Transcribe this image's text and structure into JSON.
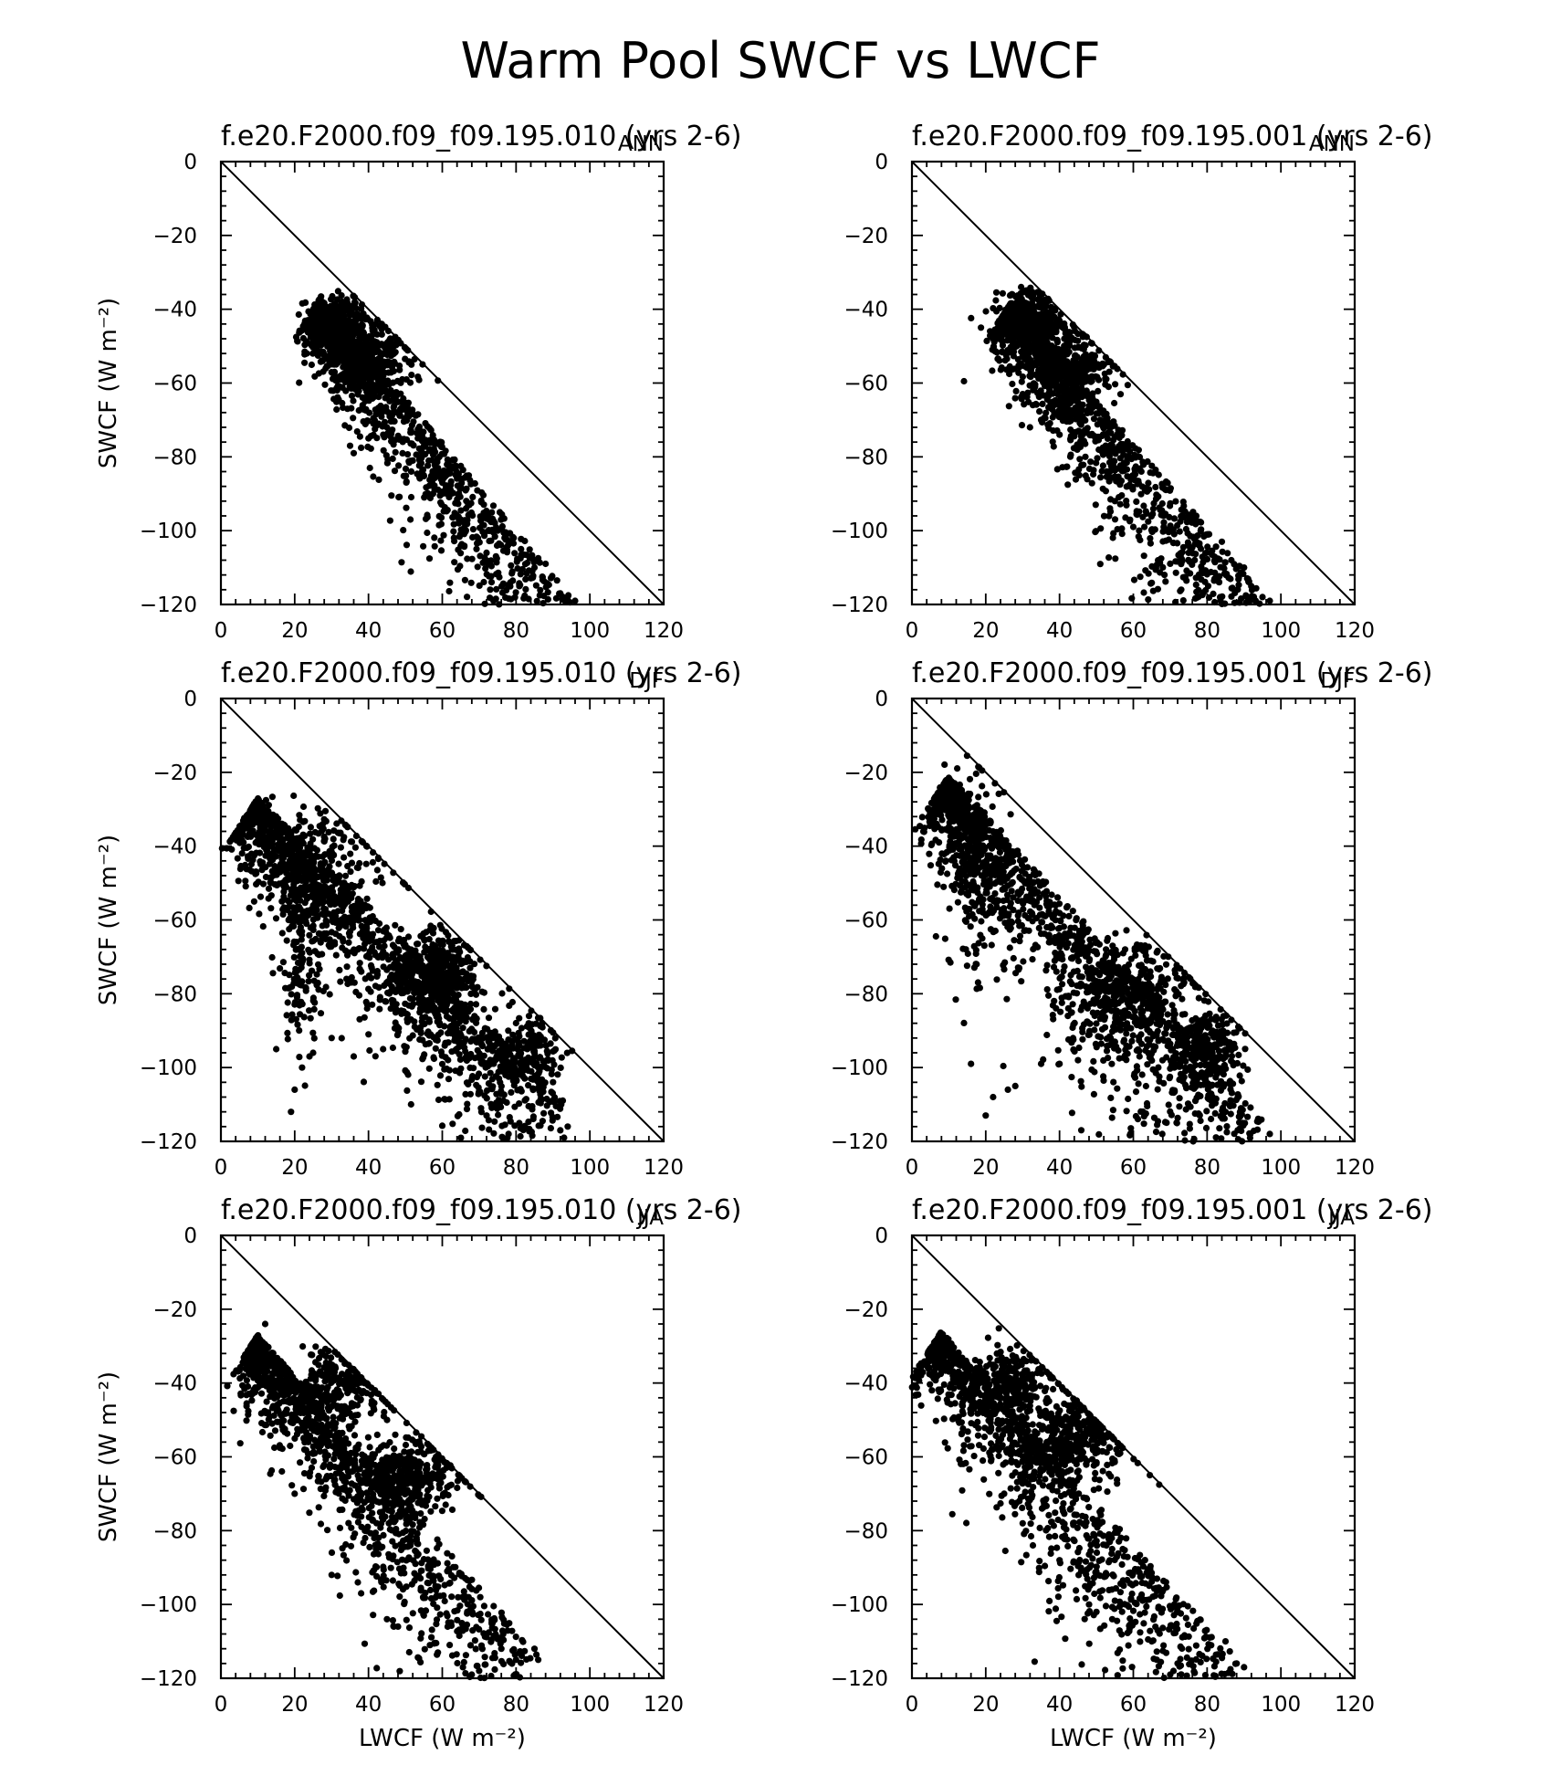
{
  "figure_title": "Warm Pool SWCF vs LWCF",
  "chart_data": [
    {
      "type": "scatter",
      "title": "f.e20.F2000.f09_f09.195.010 (yrs 2-6)",
      "season": "ANN",
      "xlabel": "",
      "ylabel": "SWCF (W m⁻²)",
      "xlim": [
        0,
        120
      ],
      "ylim": [
        -120,
        0
      ],
      "xticks": [
        "0",
        "20",
        "40",
        "60",
        "80",
        "100",
        "120"
      ],
      "yticks": [
        "0",
        "−20",
        "−40",
        "−60",
        "−80",
        "−100",
        "−120"
      ],
      "reference_line": "y = -x",
      "shape": {
        "mode": "band",
        "x_start": 27,
        "x_end": 96,
        "y_start": -37,
        "y_end": -119,
        "spread": 11,
        "n": 1100,
        "clusters": [
          {
            "x": 32,
            "y": -45,
            "sx": 4,
            "sy": 4,
            "n": 400
          },
          {
            "x": 40,
            "y": -54,
            "sx": 6,
            "sy": 5,
            "n": 350
          }
        ],
        "outliers": [
          [
            35,
            -77
          ],
          [
            36,
            -79
          ],
          [
            40,
            -75
          ],
          [
            44,
            -74
          ],
          [
            52,
            -81
          ],
          [
            55,
            -85
          ],
          [
            60,
            -90
          ],
          [
            65,
            -97
          ],
          [
            72,
            -106
          ],
          [
            73,
            -116
          ],
          [
            85,
            -110
          ],
          [
            88,
            -109
          ],
          [
            92,
            -117
          ],
          [
            94,
            -118
          ],
          [
            96,
            -119
          ],
          [
            59,
            -85
          ],
          [
            61,
            -88
          ],
          [
            45,
            -72
          ],
          [
            75,
            -100
          ],
          [
            78,
            -103
          ]
        ]
      }
    },
    {
      "type": "scatter",
      "title": "f.e20.F2000.f09_f09.195.001 (yrs 2-6)",
      "season": "ANN",
      "xlabel": "",
      "ylabel": "",
      "xlim": [
        0,
        120
      ],
      "ylim": [
        -120,
        0
      ],
      "xticks": [
        "0",
        "20",
        "40",
        "60",
        "80",
        "100",
        "120"
      ],
      "yticks": [
        "0",
        "−20",
        "−40",
        "−60",
        "−80",
        "−100",
        "−120"
      ],
      "reference_line": "y = -x",
      "shape": {
        "mode": "band",
        "x_start": 27,
        "x_end": 97,
        "y_start": -38,
        "y_end": -119,
        "spread": 11,
        "n": 1100,
        "clusters": [
          {
            "x": 32,
            "y": -44,
            "sx": 4,
            "sy": 4,
            "n": 400
          },
          {
            "x": 42,
            "y": -56,
            "sx": 6,
            "sy": 6,
            "n": 350
          }
        ],
        "outliers": [
          [
            30,
            -63
          ],
          [
            32,
            -72
          ],
          [
            35,
            -70
          ],
          [
            40,
            -74
          ],
          [
            47,
            -80
          ],
          [
            55,
            -92
          ],
          [
            60,
            -99
          ],
          [
            63,
            -99
          ],
          [
            73,
            -116
          ],
          [
            75,
            -106
          ],
          [
            90,
            -110
          ],
          [
            93,
            -119
          ],
          [
            95,
            -118
          ],
          [
            97,
            -119
          ],
          [
            80,
            -101
          ],
          [
            84,
            -103
          ]
        ]
      }
    },
    {
      "type": "scatter",
      "title": "f.e20.F2000.f09_f09.195.010 (yrs 2-6)",
      "season": "DJF",
      "xlabel": "",
      "ylabel": "SWCF (W m⁻²)",
      "xlim": [
        0,
        120
      ],
      "ylim": [
        -120,
        0
      ],
      "xticks": [
        "0",
        "20",
        "40",
        "60",
        "80",
        "100",
        "120"
      ],
      "yticks": [
        "0",
        "−20",
        "−40",
        "−60",
        "−80",
        "−100",
        "−120"
      ],
      "reference_line": "y = -x",
      "shape": {
        "mode": "band",
        "x_start": 10,
        "x_end": 94,
        "y_start": -27,
        "y_end": -110,
        "spread": 12,
        "n": 1300,
        "clusters": [
          {
            "x": 58,
            "y": -75,
            "sx": 6,
            "sy": 6,
            "n": 450
          },
          {
            "x": 82,
            "y": -96,
            "sx": 5,
            "sy": 5,
            "n": 200
          },
          {
            "x": 22,
            "y": -70,
            "sx": 3,
            "sy": 12,
            "n": 150
          },
          {
            "x": 25,
            "y": -45,
            "sx": 10,
            "sy": 9,
            "n": 250
          }
        ],
        "outliers": [
          [
            15,
            -95
          ],
          [
            19,
            -112
          ],
          [
            20,
            -106
          ],
          [
            25,
            -96
          ],
          [
            30,
            -92
          ],
          [
            36,
            -97
          ],
          [
            40,
            -91
          ],
          [
            24,
            -97
          ],
          [
            22,
            -100
          ],
          [
            92,
            -117
          ],
          [
            93,
            -119
          ],
          [
            94,
            -116
          ]
        ]
      }
    },
    {
      "type": "scatter",
      "title": "f.e20.F2000.f09_f09.195.001 (yrs 2-6)",
      "season": "DJF",
      "xlabel": "",
      "ylabel": "",
      "xlim": [
        0,
        120
      ],
      "ylim": [
        -120,
        0
      ],
      "xticks": [
        "0",
        "20",
        "40",
        "60",
        "80",
        "100",
        "120"
      ],
      "yticks": [
        "0",
        "−20",
        "−40",
        "−60",
        "−80",
        "−100",
        "−120"
      ],
      "reference_line": "y = -x",
      "shape": {
        "mode": "band",
        "x_start": 10,
        "x_end": 97,
        "y_start": -21,
        "y_end": -115,
        "spread": 14,
        "n": 1300,
        "clusters": [
          {
            "x": 60,
            "y": -80,
            "sx": 8,
            "sy": 7,
            "n": 350
          },
          {
            "x": 80,
            "y": -95,
            "sx": 5,
            "sy": 5,
            "n": 250
          },
          {
            "x": 16,
            "y": -45,
            "sx": 4,
            "sy": 15,
            "n": 200
          }
        ],
        "outliers": [
          [
            16,
            -99
          ],
          [
            20,
            -113
          ],
          [
            22,
            -108
          ],
          [
            26,
            -106
          ],
          [
            28,
            -105
          ],
          [
            35,
            -99
          ],
          [
            40,
            -99
          ],
          [
            45,
            -98
          ],
          [
            97,
            -118
          ],
          [
            85,
            -112
          ]
        ]
      }
    },
    {
      "type": "scatter",
      "title": "f.e20.F2000.f09_f09.195.010 (yrs 2-6)",
      "season": "JJA",
      "xlabel": "LWCF (W m⁻²)",
      "ylabel": "SWCF (W m⁻²)",
      "xlim": [
        0,
        120
      ],
      "ylim": [
        -120,
        0
      ],
      "xticks": [
        "0",
        "20",
        "40",
        "60",
        "80",
        "100",
        "120"
      ],
      "yticks": [
        "0",
        "−20",
        "−40",
        "−60",
        "−80",
        "−100",
        "−120"
      ],
      "reference_line": "y = -x",
      "shape": {
        "mode": "band",
        "x_start": 10,
        "x_end": 86,
        "y_start": -27,
        "y_end": -113,
        "spread": 12,
        "n": 1100,
        "clusters": [
          {
            "x": 50,
            "y": -65,
            "sx": 7,
            "sy": 5,
            "n": 400
          },
          {
            "x": 32,
            "y": -42,
            "sx": 6,
            "sy": 5,
            "n": 250
          }
        ],
        "outliers": [
          [
            12,
            -24
          ],
          [
            20,
            -70
          ],
          [
            30,
            -92
          ],
          [
            38,
            -97
          ],
          [
            45,
            -104
          ],
          [
            48,
            -106
          ],
          [
            55,
            -103
          ],
          [
            62,
            -111
          ],
          [
            68,
            -119
          ],
          [
            70,
            -118
          ],
          [
            85,
            -112
          ],
          [
            86,
            -115
          ],
          [
            80,
            -115
          ],
          [
            76,
            -112
          ]
        ]
      }
    },
    {
      "type": "scatter",
      "title": "f.e20.F2000.f09_f09.195.001 (yrs 2-6)",
      "season": "JJA",
      "xlabel": "LWCF (W m⁻²)",
      "ylabel": "",
      "xlim": [
        0,
        120
      ],
      "ylim": [
        -120,
        0
      ],
      "xticks": [
        "0",
        "20",
        "40",
        "60",
        "80",
        "100",
        "120"
      ],
      "yticks": [
        "0",
        "−20",
        "−40",
        "−60",
        "−80",
        "−100",
        "−120"
      ],
      "reference_line": "y = -x",
      "shape": {
        "mode": "band",
        "x_start": 8,
        "x_end": 90,
        "y_start": -26,
        "y_end": -117,
        "spread": 13,
        "n": 1100,
        "clusters": [
          {
            "x": 43,
            "y": -56,
            "sx": 7,
            "sy": 6,
            "n": 400
          },
          {
            "x": 28,
            "y": -40,
            "sx": 6,
            "sy": 5,
            "n": 250
          }
        ],
        "outliers": [
          [
            25,
            -70
          ],
          [
            30,
            -78
          ],
          [
            40,
            -88
          ],
          [
            48,
            -100
          ],
          [
            50,
            -102
          ],
          [
            55,
            -99
          ],
          [
            60,
            -105
          ],
          [
            65,
            -110
          ],
          [
            70,
            -119
          ],
          [
            72,
            -116
          ],
          [
            85,
            -110
          ],
          [
            88,
            -116
          ],
          [
            90,
            -117
          ]
        ]
      }
    }
  ]
}
